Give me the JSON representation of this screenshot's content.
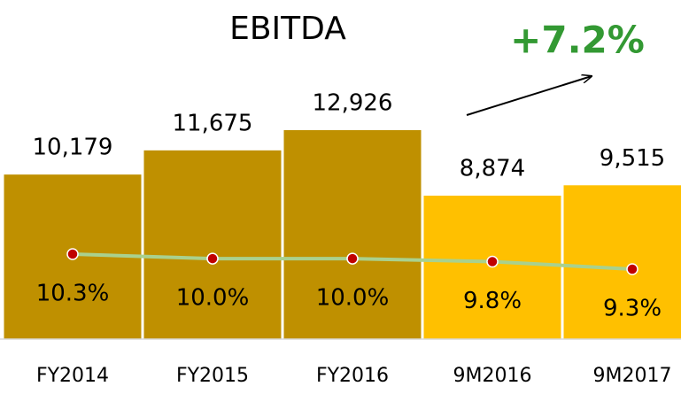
{
  "chart_data": {
    "type": "bar",
    "title": "EBITDA",
    "categories": [
      "FY2014",
      "FY2015",
      "FY2016",
      "9M2016",
      "9M2017"
    ],
    "series": [
      {
        "values": [
          10179,
          11675,
          12926,
          8874,
          9515
        ],
        "value_labels": [
          "10,179",
          "11,675",
          "12,926",
          "8,874",
          "9,515"
        ],
        "colors": [
          "#bf9000",
          "#bf9000",
          "#bf9000",
          "#ffc000",
          "#ffc000"
        ]
      },
      {
        "type": "line",
        "values": [
          10.3,
          10.0,
          10.0,
          9.8,
          9.3
        ],
        "value_labels": [
          "10.3%",
          "10.0%",
          "10.0%",
          "9.8%",
          "9.3%"
        ],
        "color": "#a9d18e",
        "marker_color": "#c00000"
      }
    ],
    "annotation": "+7.2%",
    "annotation_color": "#339933"
  }
}
